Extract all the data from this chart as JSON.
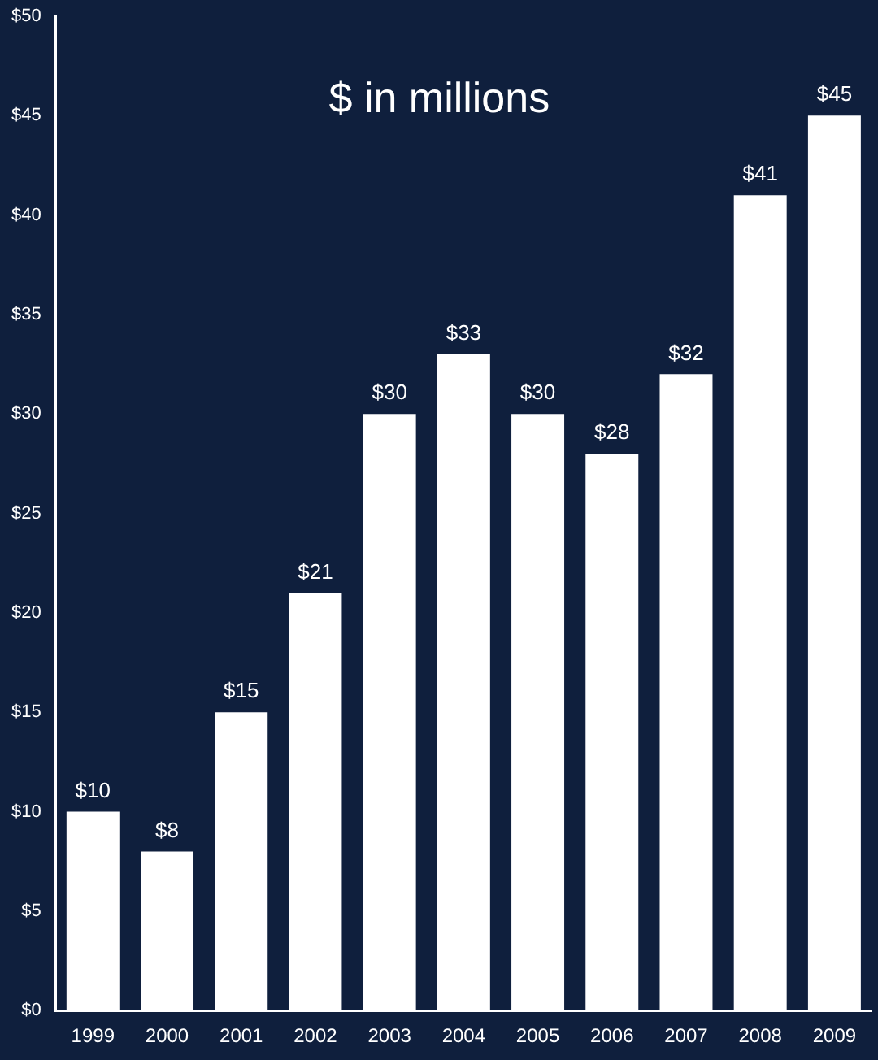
{
  "chart_data": {
    "type": "bar",
    "title": "$ in millions",
    "categories": [
      "1999",
      "2000",
      "2001",
      "2002",
      "2003",
      "2004",
      "2005",
      "2006",
      "2007",
      "2008",
      "2009"
    ],
    "values": [
      10,
      8,
      15,
      21,
      30,
      33,
      30,
      28,
      32,
      41,
      45
    ],
    "value_labels": [
      "$10",
      "$8",
      "$15",
      "$21",
      "$30",
      "$33",
      "$30",
      "$28",
      "$32",
      "$41",
      "$45"
    ],
    "color": "#ffffff",
    "ylim": [
      0,
      50
    ],
    "yticks": [
      {
        "value": 0,
        "label": "$0"
      },
      {
        "value": 5,
        "label": "$5"
      },
      {
        "value": 10,
        "label": "$10"
      },
      {
        "value": 15,
        "label": "$15"
      },
      {
        "value": 20,
        "label": "$20"
      },
      {
        "value": 25,
        "label": "$25"
      },
      {
        "value": 30,
        "label": "$30"
      },
      {
        "value": 35,
        "label": "$35"
      },
      {
        "value": 40,
        "label": "$40"
      },
      {
        "value": 45,
        "label": "$45"
      },
      {
        "value": 50,
        "label": "$50"
      }
    ],
    "grid": false,
    "legend": false
  }
}
